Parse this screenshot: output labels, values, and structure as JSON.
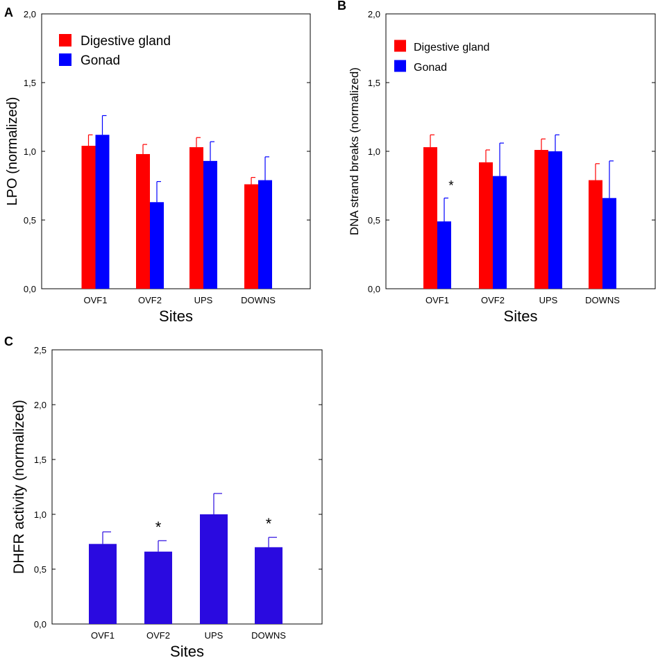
{
  "colors": {
    "red": "#ff0000",
    "blue": "#0000ff",
    "purple": "#2a0ae0",
    "axis": "#000000"
  },
  "chart_data": [
    {
      "panel": "A",
      "type": "bar",
      "categories": [
        "OVF1",
        "OVF2",
        "UPS",
        "DOWNS"
      ],
      "series": [
        {
          "name": "Digestive gland",
          "color": "#ff0000",
          "values": [
            1.04,
            0.98,
            1.03,
            0.76
          ],
          "errors": [
            0.08,
            0.07,
            0.07,
            0.05
          ]
        },
        {
          "name": "Gonad",
          "color": "#0000ff",
          "values": [
            1.12,
            0.63,
            0.93,
            0.79
          ],
          "errors": [
            0.14,
            0.15,
            0.14,
            0.17
          ]
        }
      ],
      "ylabel": "LPO (normalized)",
      "xlabel": "Sites",
      "ylim": [
        0,
        2
      ],
      "yticks": [
        "0,0",
        "0,5",
        "1,0",
        "1,5",
        "2,0"
      ],
      "ytick_values": [
        0,
        0.5,
        1,
        1.5,
        2
      ],
      "annotations": []
    },
    {
      "panel": "B",
      "type": "bar",
      "categories": [
        "OVF1",
        "OVF2",
        "UPS",
        "DOWNS"
      ],
      "series": [
        {
          "name": "Digestive gland",
          "color": "#ff0000",
          "values": [
            1.03,
            0.92,
            1.01,
            0.79
          ],
          "errors": [
            0.09,
            0.09,
            0.08,
            0.12
          ]
        },
        {
          "name": "Gonad",
          "color": "#0000ff",
          "values": [
            0.49,
            0.82,
            1.0,
            0.66
          ],
          "errors": [
            0.17,
            0.24,
            0.12,
            0.27
          ]
        }
      ],
      "ylabel": "DNA strand breaks (normalized)",
      "xlabel": "Sites",
      "ylim": [
        0,
        2
      ],
      "yticks": [
        "0,0",
        "0,5",
        "1,0",
        "1,5",
        "2,0"
      ],
      "ytick_values": [
        0,
        0.5,
        1,
        1.5,
        2
      ],
      "annotations": [
        {
          "category": "OVF1",
          "series": "Gonad",
          "text": "*"
        }
      ]
    },
    {
      "panel": "C",
      "type": "bar",
      "categories": [
        "OVF1",
        "OVF2",
        "UPS",
        "DOWNS"
      ],
      "series": [
        {
          "name": "DHFR activity",
          "color": "#2a0ae0",
          "values": [
            0.73,
            0.66,
            1.0,
            0.7
          ],
          "errors": [
            0.11,
            0.1,
            0.19,
            0.09
          ]
        }
      ],
      "ylabel": "DHFR activity (normalized)",
      "xlabel": "Sites",
      "ylim": [
        0,
        2.5
      ],
      "yticks": [
        "0,0",
        "0,5",
        "1,0",
        "1,5",
        "2,0",
        "2,5"
      ],
      "ytick_values": [
        0,
        0.5,
        1,
        1.5,
        2,
        2.5
      ],
      "annotations": [
        {
          "category": "OVF2",
          "series": "DHFR activity",
          "text": "*"
        },
        {
          "category": "DOWNS",
          "series": "DHFR activity",
          "text": "*"
        }
      ]
    }
  ]
}
